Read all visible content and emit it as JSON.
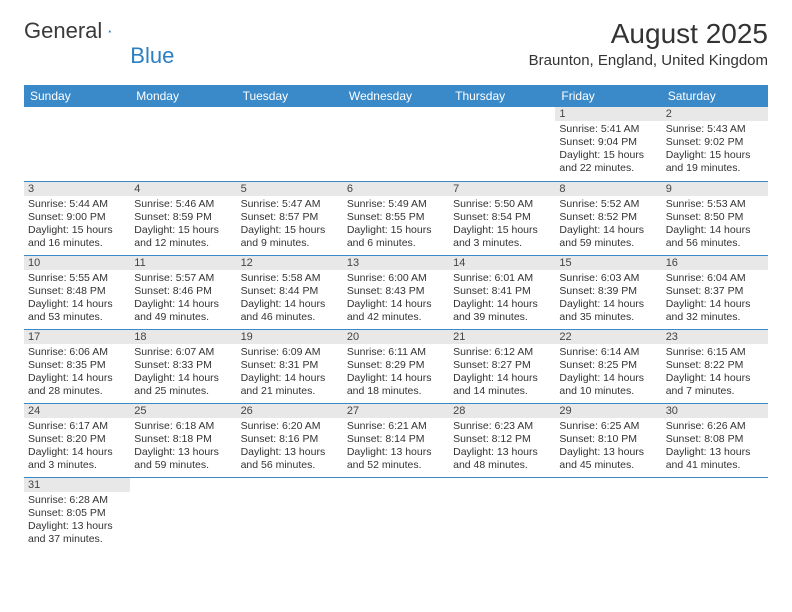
{
  "header": {
    "logo_text1": "General",
    "logo_text2": "Blue",
    "title": "August 2025",
    "subtitle": "Braunton, England, United Kingdom"
  },
  "colors": {
    "header_bg": "#3a89c9",
    "header_fg": "#ffffff",
    "daynum_bg": "#e8e8e8",
    "rule": "#3a89c9",
    "text": "#333333",
    "logo_blue": "#2d7fc1"
  },
  "weekdays": [
    "Sunday",
    "Monday",
    "Tuesday",
    "Wednesday",
    "Thursday",
    "Friday",
    "Saturday"
  ],
  "weeks": [
    [
      {
        "blank": true
      },
      {
        "blank": true
      },
      {
        "blank": true
      },
      {
        "blank": true
      },
      {
        "blank": true
      },
      {
        "n": "1",
        "sr": "Sunrise: 5:41 AM",
        "ss": "Sunset: 9:04 PM",
        "dl": "Daylight: 15 hours and 22 minutes."
      },
      {
        "n": "2",
        "sr": "Sunrise: 5:43 AM",
        "ss": "Sunset: 9:02 PM",
        "dl": "Daylight: 15 hours and 19 minutes."
      }
    ],
    [
      {
        "n": "3",
        "sr": "Sunrise: 5:44 AM",
        "ss": "Sunset: 9:00 PM",
        "dl": "Daylight: 15 hours and 16 minutes."
      },
      {
        "n": "4",
        "sr": "Sunrise: 5:46 AM",
        "ss": "Sunset: 8:59 PM",
        "dl": "Daylight: 15 hours and 12 minutes."
      },
      {
        "n": "5",
        "sr": "Sunrise: 5:47 AM",
        "ss": "Sunset: 8:57 PM",
        "dl": "Daylight: 15 hours and 9 minutes."
      },
      {
        "n": "6",
        "sr": "Sunrise: 5:49 AM",
        "ss": "Sunset: 8:55 PM",
        "dl": "Daylight: 15 hours and 6 minutes."
      },
      {
        "n": "7",
        "sr": "Sunrise: 5:50 AM",
        "ss": "Sunset: 8:54 PM",
        "dl": "Daylight: 15 hours and 3 minutes."
      },
      {
        "n": "8",
        "sr": "Sunrise: 5:52 AM",
        "ss": "Sunset: 8:52 PM",
        "dl": "Daylight: 14 hours and 59 minutes."
      },
      {
        "n": "9",
        "sr": "Sunrise: 5:53 AM",
        "ss": "Sunset: 8:50 PM",
        "dl": "Daylight: 14 hours and 56 minutes."
      }
    ],
    [
      {
        "n": "10",
        "sr": "Sunrise: 5:55 AM",
        "ss": "Sunset: 8:48 PM",
        "dl": "Daylight: 14 hours and 53 minutes."
      },
      {
        "n": "11",
        "sr": "Sunrise: 5:57 AM",
        "ss": "Sunset: 8:46 PM",
        "dl": "Daylight: 14 hours and 49 minutes."
      },
      {
        "n": "12",
        "sr": "Sunrise: 5:58 AM",
        "ss": "Sunset: 8:44 PM",
        "dl": "Daylight: 14 hours and 46 minutes."
      },
      {
        "n": "13",
        "sr": "Sunrise: 6:00 AM",
        "ss": "Sunset: 8:43 PM",
        "dl": "Daylight: 14 hours and 42 minutes."
      },
      {
        "n": "14",
        "sr": "Sunrise: 6:01 AM",
        "ss": "Sunset: 8:41 PM",
        "dl": "Daylight: 14 hours and 39 minutes."
      },
      {
        "n": "15",
        "sr": "Sunrise: 6:03 AM",
        "ss": "Sunset: 8:39 PM",
        "dl": "Daylight: 14 hours and 35 minutes."
      },
      {
        "n": "16",
        "sr": "Sunrise: 6:04 AM",
        "ss": "Sunset: 8:37 PM",
        "dl": "Daylight: 14 hours and 32 minutes."
      }
    ],
    [
      {
        "n": "17",
        "sr": "Sunrise: 6:06 AM",
        "ss": "Sunset: 8:35 PM",
        "dl": "Daylight: 14 hours and 28 minutes."
      },
      {
        "n": "18",
        "sr": "Sunrise: 6:07 AM",
        "ss": "Sunset: 8:33 PM",
        "dl": "Daylight: 14 hours and 25 minutes."
      },
      {
        "n": "19",
        "sr": "Sunrise: 6:09 AM",
        "ss": "Sunset: 8:31 PM",
        "dl": "Daylight: 14 hours and 21 minutes."
      },
      {
        "n": "20",
        "sr": "Sunrise: 6:11 AM",
        "ss": "Sunset: 8:29 PM",
        "dl": "Daylight: 14 hours and 18 minutes."
      },
      {
        "n": "21",
        "sr": "Sunrise: 6:12 AM",
        "ss": "Sunset: 8:27 PM",
        "dl": "Daylight: 14 hours and 14 minutes."
      },
      {
        "n": "22",
        "sr": "Sunrise: 6:14 AM",
        "ss": "Sunset: 8:25 PM",
        "dl": "Daylight: 14 hours and 10 minutes."
      },
      {
        "n": "23",
        "sr": "Sunrise: 6:15 AM",
        "ss": "Sunset: 8:22 PM",
        "dl": "Daylight: 14 hours and 7 minutes."
      }
    ],
    [
      {
        "n": "24",
        "sr": "Sunrise: 6:17 AM",
        "ss": "Sunset: 8:20 PM",
        "dl": "Daylight: 14 hours and 3 minutes."
      },
      {
        "n": "25",
        "sr": "Sunrise: 6:18 AM",
        "ss": "Sunset: 8:18 PM",
        "dl": "Daylight: 13 hours and 59 minutes."
      },
      {
        "n": "26",
        "sr": "Sunrise: 6:20 AM",
        "ss": "Sunset: 8:16 PM",
        "dl": "Daylight: 13 hours and 56 minutes."
      },
      {
        "n": "27",
        "sr": "Sunrise: 6:21 AM",
        "ss": "Sunset: 8:14 PM",
        "dl": "Daylight: 13 hours and 52 minutes."
      },
      {
        "n": "28",
        "sr": "Sunrise: 6:23 AM",
        "ss": "Sunset: 8:12 PM",
        "dl": "Daylight: 13 hours and 48 minutes."
      },
      {
        "n": "29",
        "sr": "Sunrise: 6:25 AM",
        "ss": "Sunset: 8:10 PM",
        "dl": "Daylight: 13 hours and 45 minutes."
      },
      {
        "n": "30",
        "sr": "Sunrise: 6:26 AM",
        "ss": "Sunset: 8:08 PM",
        "dl": "Daylight: 13 hours and 41 minutes."
      }
    ],
    [
      {
        "n": "31",
        "sr": "Sunrise: 6:28 AM",
        "ss": "Sunset: 8:05 PM",
        "dl": "Daylight: 13 hours and 37 minutes."
      },
      {
        "blank": true
      },
      {
        "blank": true
      },
      {
        "blank": true
      },
      {
        "blank": true
      },
      {
        "blank": true
      },
      {
        "blank": true
      }
    ]
  ]
}
